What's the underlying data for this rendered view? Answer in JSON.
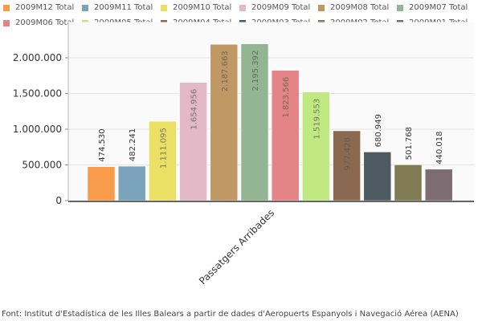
{
  "chart_data": {
    "type": "bar",
    "categories": [
      "Passatgers Arribades"
    ],
    "series": [
      {
        "name": "2009M12 Total",
        "value": 474530,
        "label": "474.530",
        "color": "#f89b4b"
      },
      {
        "name": "2009M11 Total",
        "value": 482241,
        "label": "482.241",
        "color": "#7ba2bb"
      },
      {
        "name": "2009M10 Total",
        "value": 1111095,
        "label": "1.111.095",
        "color": "#ebe066"
      },
      {
        "name": "2009M09 Total",
        "value": 1654956,
        "label": "1.654.956",
        "color": "#e3b9c8"
      },
      {
        "name": "2009M08 Total",
        "value": 2187663,
        "label": "2.187.663",
        "color": "#bf9864"
      },
      {
        "name": "2009M07 Total",
        "value": 2195392,
        "label": "2.195.392",
        "color": "#93b591"
      },
      {
        "name": "2009M06 Total",
        "value": 1823566,
        "label": "1.823.566",
        "color": "#e58487"
      },
      {
        "name": "2009M05 Total",
        "value": 1519553,
        "label": "1.519.553",
        "color": "#c0e981"
      },
      {
        "name": "2009M04 Total",
        "value": 977428,
        "label": "977.428",
        "color": "#8a6950"
      },
      {
        "name": "2009M03 Total",
        "value": 680949,
        "label": "680.949",
        "color": "#4e5a62"
      },
      {
        "name": "2009M02 Total",
        "value": 501768,
        "label": "501.768",
        "color": "#807b52"
      },
      {
        "name": "2009M01 Total",
        "value": 440018,
        "label": "440.018",
        "color": "#7d6d73"
      }
    ],
    "yticks": [
      0,
      500000,
      1000000,
      1500000,
      2000000
    ],
    "ytick_labels": [
      "0",
      "500.000",
      "1.000.000",
      "1.500.000",
      "2.000.000"
    ],
    "ylim": [
      0,
      2500000
    ],
    "grid": true,
    "legend": "top"
  },
  "source": "Font: Institut d'Estadística de les Illes Balears a partir de dades d'Aeropuerts Espanyols i Navegació Aérea (AENA)"
}
